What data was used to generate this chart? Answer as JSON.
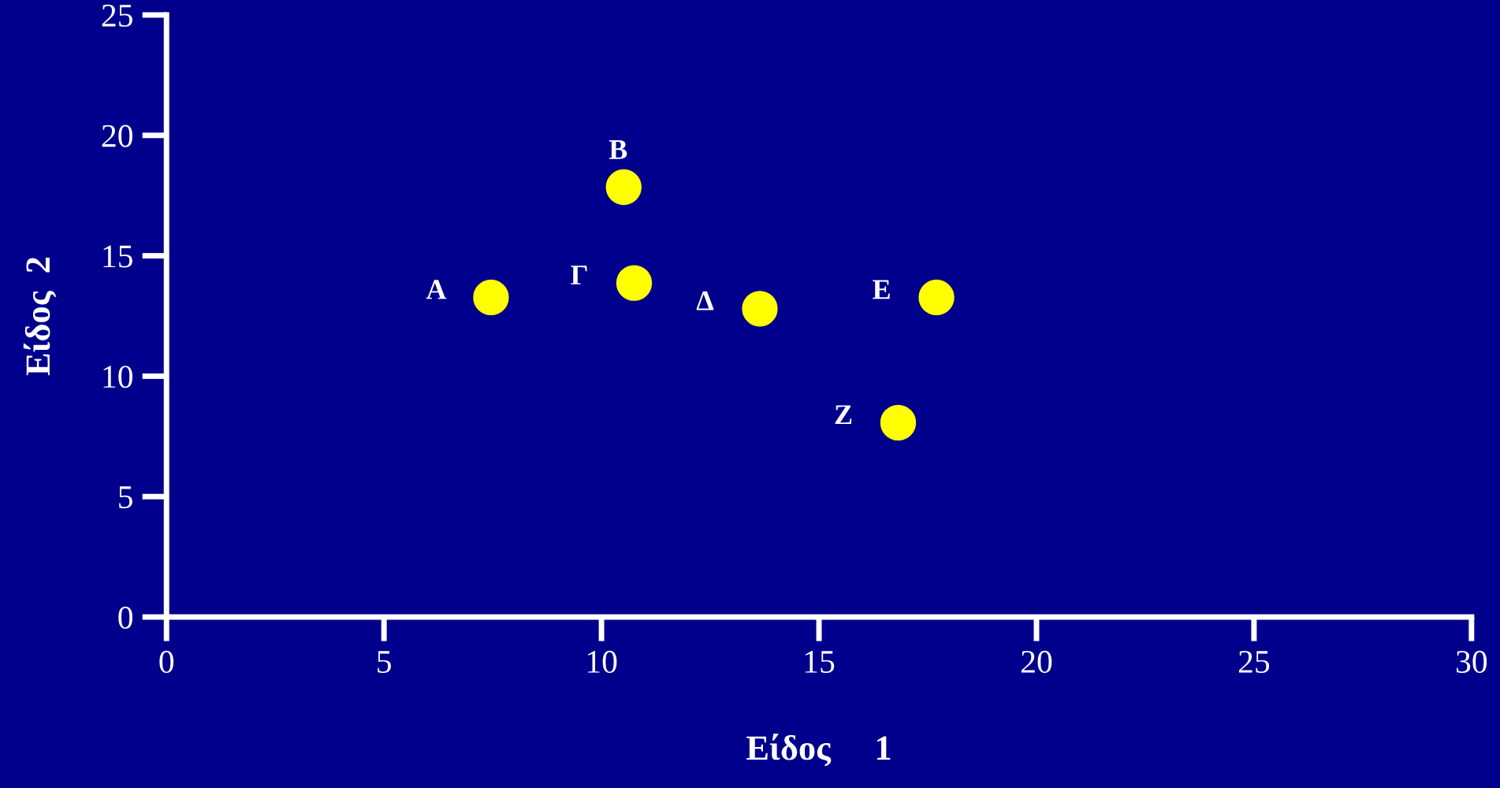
{
  "chart_data": {
    "type": "scatter",
    "xlabel": "Είδος     1",
    "ylabel": "Είδος  2",
    "x": [
      7.46,
      10.51,
      10.75,
      13.64,
      17.7,
      16.82
    ],
    "values": [
      13.27,
      17.85,
      13.87,
      12.8,
      13.27,
      8.07
    ],
    "color": "#ffff00",
    "marker": "circle",
    "grid": false,
    "xlim": [
      0,
      30
    ],
    "xticks": [
      0,
      5,
      10,
      15,
      20,
      25,
      30
    ],
    "ylim": [
      0,
      25
    ],
    "yticks": [
      0,
      5,
      10,
      15,
      20,
      25
    ],
    "annotations": [
      {
        "text": "Α",
        "x": 7.46,
        "y": 13.27
      },
      {
        "text": "Β",
        "x": 10.51,
        "y": 17.85
      },
      {
        "text": "Γ",
        "x": 10.75,
        "y": 13.87
      },
      {
        "text": "Δ",
        "x": 13.64,
        "y": 12.8
      },
      {
        "text": "Ε",
        "x": 17.7,
        "y": 13.27
      },
      {
        "text": "Ζ",
        "x": 16.82,
        "y": 8.07
      }
    ]
  }
}
